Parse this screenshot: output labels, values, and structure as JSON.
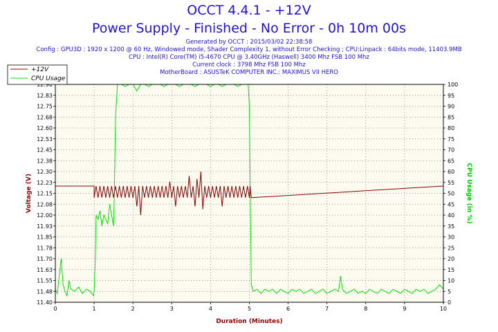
{
  "header": {
    "title": "OCCT 4.4.1 - +12V",
    "subtitle": "Power Supply - Finished - No Error - 0h 10m 00s",
    "info_lines": [
      "Generated by OCCT : 2015/03/02 22:38:58",
      "Config : GPU3D : 1920 x 1200 @ 60 Hz, Windowed mode, Shader Complexity 1, without Error Checking ; CPU:Linpack : 64bits mode, 11403.9MB",
      "CPU : Intel(R) Core(TM) i5-4670 CPU @ 3.40GHz (Haswell) 3400 Mhz FSB 100 Mhz",
      "Current clock : 3798 Mhz FSB 100 Mhz",
      "MotherBoard : ASUSTeK COMPUTER INC.: MAXIMUS VII HERO"
    ]
  },
  "colors": {
    "title": "#1f10e0",
    "voltage": "#8b0000",
    "cpu": "#00e600",
    "plot_bg": "#fdfaf0"
  },
  "chart_data": {
    "type": "line",
    "xlabel": "Duration (Minutes)",
    "ylabel": "Voltage (V)",
    "y2label": "CPU Usage (in %)",
    "xlim": [
      0,
      10
    ],
    "ylim": [
      11.4,
      12.9
    ],
    "y2lim": [
      0,
      100
    ],
    "x_ticks": [
      "0",
      "1",
      "2",
      "3",
      "4",
      "5",
      "6",
      "7",
      "8",
      "9",
      "10"
    ],
    "y_ticks": [
      "11.40",
      "11.48",
      "11.55",
      "11.63",
      "11.70",
      "11.78",
      "11.85",
      "11.93",
      "12.00",
      "12.08",
      "12.15",
      "12.23",
      "12.30",
      "12.38",
      "12.45",
      "12.53",
      "12.60",
      "12.68",
      "12.75",
      "12.83",
      "12.90"
    ],
    "y2_ticks": [
      "0",
      "5",
      "10",
      "15",
      "20",
      "25",
      "30",
      "35",
      "40",
      "45",
      "50",
      "55",
      "60",
      "65",
      "70",
      "75",
      "80",
      "85",
      "90",
      "95",
      "100"
    ],
    "grid": true,
    "legend": "top-left",
    "series": [
      {
        "name": "+12V",
        "axis": "left",
        "x": [
          0,
          1.0,
          1.0,
          1.05,
          1.1,
          1.15,
          1.2,
          1.25,
          1.3,
          1.35,
          1.4,
          1.45,
          1.5,
          1.55,
          1.6,
          1.65,
          1.7,
          1.75,
          1.8,
          1.85,
          1.9,
          1.95,
          2.0,
          2.05,
          2.1,
          2.15,
          2.2,
          2.25,
          2.3,
          2.35,
          2.4,
          2.45,
          2.5,
          2.55,
          2.6,
          2.65,
          2.7,
          2.75,
          2.8,
          2.85,
          2.9,
          2.95,
          3.0,
          3.05,
          3.1,
          3.15,
          3.2,
          3.25,
          3.3,
          3.35,
          3.4,
          3.45,
          3.5,
          3.55,
          3.6,
          3.65,
          3.7,
          3.75,
          3.8,
          3.85,
          3.9,
          3.95,
          4.0,
          4.05,
          4.1,
          4.15,
          4.2,
          4.25,
          4.3,
          4.35,
          4.4,
          4.45,
          4.5,
          4.55,
          4.6,
          4.65,
          4.7,
          4.75,
          4.8,
          4.85,
          4.9,
          4.95,
          5.0,
          5.02,
          5.05,
          10.0
        ],
        "y": [
          12.2,
          12.2,
          12.12,
          12.2,
          12.12,
          12.2,
          12.12,
          12.2,
          12.12,
          12.2,
          12.12,
          12.2,
          12.12,
          12.2,
          12.12,
          12.2,
          12.12,
          12.2,
          12.12,
          12.2,
          12.12,
          12.2,
          12.12,
          12.2,
          12.06,
          12.2,
          12.0,
          12.2,
          12.12,
          12.2,
          12.12,
          12.2,
          12.12,
          12.2,
          12.12,
          12.2,
          12.12,
          12.2,
          12.12,
          12.2,
          12.12,
          12.23,
          12.12,
          12.2,
          12.06,
          12.2,
          12.12,
          12.2,
          12.12,
          12.2,
          12.12,
          12.27,
          12.12,
          12.2,
          12.06,
          12.25,
          12.12,
          12.3,
          12.04,
          12.2,
          12.12,
          12.2,
          12.12,
          12.2,
          12.12,
          12.2,
          12.12,
          12.2,
          12.06,
          12.2,
          12.12,
          12.2,
          12.12,
          12.2,
          12.12,
          12.2,
          12.12,
          12.2,
          12.12,
          12.2,
          12.12,
          12.2,
          12.12,
          12.2,
          12.12,
          12.2
        ]
      },
      {
        "name": "CPU Usage",
        "axis": "right",
        "x": [
          0,
          0.05,
          0.1,
          0.15,
          0.2,
          0.25,
          0.3,
          0.35,
          0.4,
          0.5,
          0.6,
          0.7,
          0.8,
          0.9,
          0.98,
          1.0,
          1.03,
          1.05,
          1.1,
          1.15,
          1.2,
          1.25,
          1.3,
          1.35,
          1.4,
          1.45,
          1.5,
          1.52,
          1.55,
          1.6,
          1.7,
          1.8,
          1.9,
          2.0,
          2.1,
          2.2,
          2.3,
          2.4,
          2.5,
          2.6,
          2.7,
          2.8,
          2.9,
          3.0,
          3.1,
          3.2,
          3.3,
          3.4,
          3.5,
          3.6,
          3.7,
          3.8,
          3.9,
          4.0,
          4.1,
          4.2,
          4.3,
          4.4,
          4.5,
          4.6,
          4.7,
          4.8,
          4.9,
          4.97,
          5.0,
          5.03,
          5.05,
          5.1,
          5.2,
          5.3,
          5.4,
          5.5,
          5.6,
          5.7,
          5.8,
          5.9,
          6.0,
          6.1,
          6.2,
          6.3,
          6.4,
          6.5,
          6.6,
          6.7,
          6.8,
          6.9,
          7.0,
          7.1,
          7.2,
          7.3,
          7.35,
          7.4,
          7.5,
          7.6,
          7.7,
          7.8,
          7.9,
          8.0,
          8.1,
          8.2,
          8.3,
          8.4,
          8.5,
          8.6,
          8.7,
          8.8,
          8.9,
          9.0,
          9.1,
          9.2,
          9.3,
          9.4,
          9.5,
          9.6,
          9.7,
          9.8,
          9.9,
          10.0
        ],
        "y": [
          6,
          4,
          12,
          20,
          8,
          5,
          3,
          10,
          6,
          5,
          7,
          4,
          6,
          5,
          3,
          5,
          20,
          40,
          38,
          42,
          35,
          40,
          38,
          36,
          45,
          40,
          35,
          50,
          85,
          100,
          100,
          99,
          100,
          100,
          97,
          100,
          100,
          99,
          100,
          100,
          100,
          99,
          100,
          100,
          100,
          99,
          100,
          100,
          100,
          99,
          100,
          100,
          100,
          99,
          100,
          100,
          99,
          100,
          100,
          100,
          99,
          100,
          100,
          100,
          90,
          40,
          8,
          5,
          6,
          4,
          6,
          5,
          6,
          4,
          6,
          5,
          4,
          6,
          5,
          6,
          4,
          5,
          6,
          4,
          5,
          6,
          4,
          5,
          6,
          5,
          12,
          6,
          4,
          5,
          6,
          4,
          5,
          4,
          6,
          5,
          4,
          6,
          5,
          4,
          6,
          5,
          4,
          6,
          5,
          4,
          6,
          5,
          6,
          4,
          5,
          6,
          8,
          6
        ]
      }
    ]
  }
}
